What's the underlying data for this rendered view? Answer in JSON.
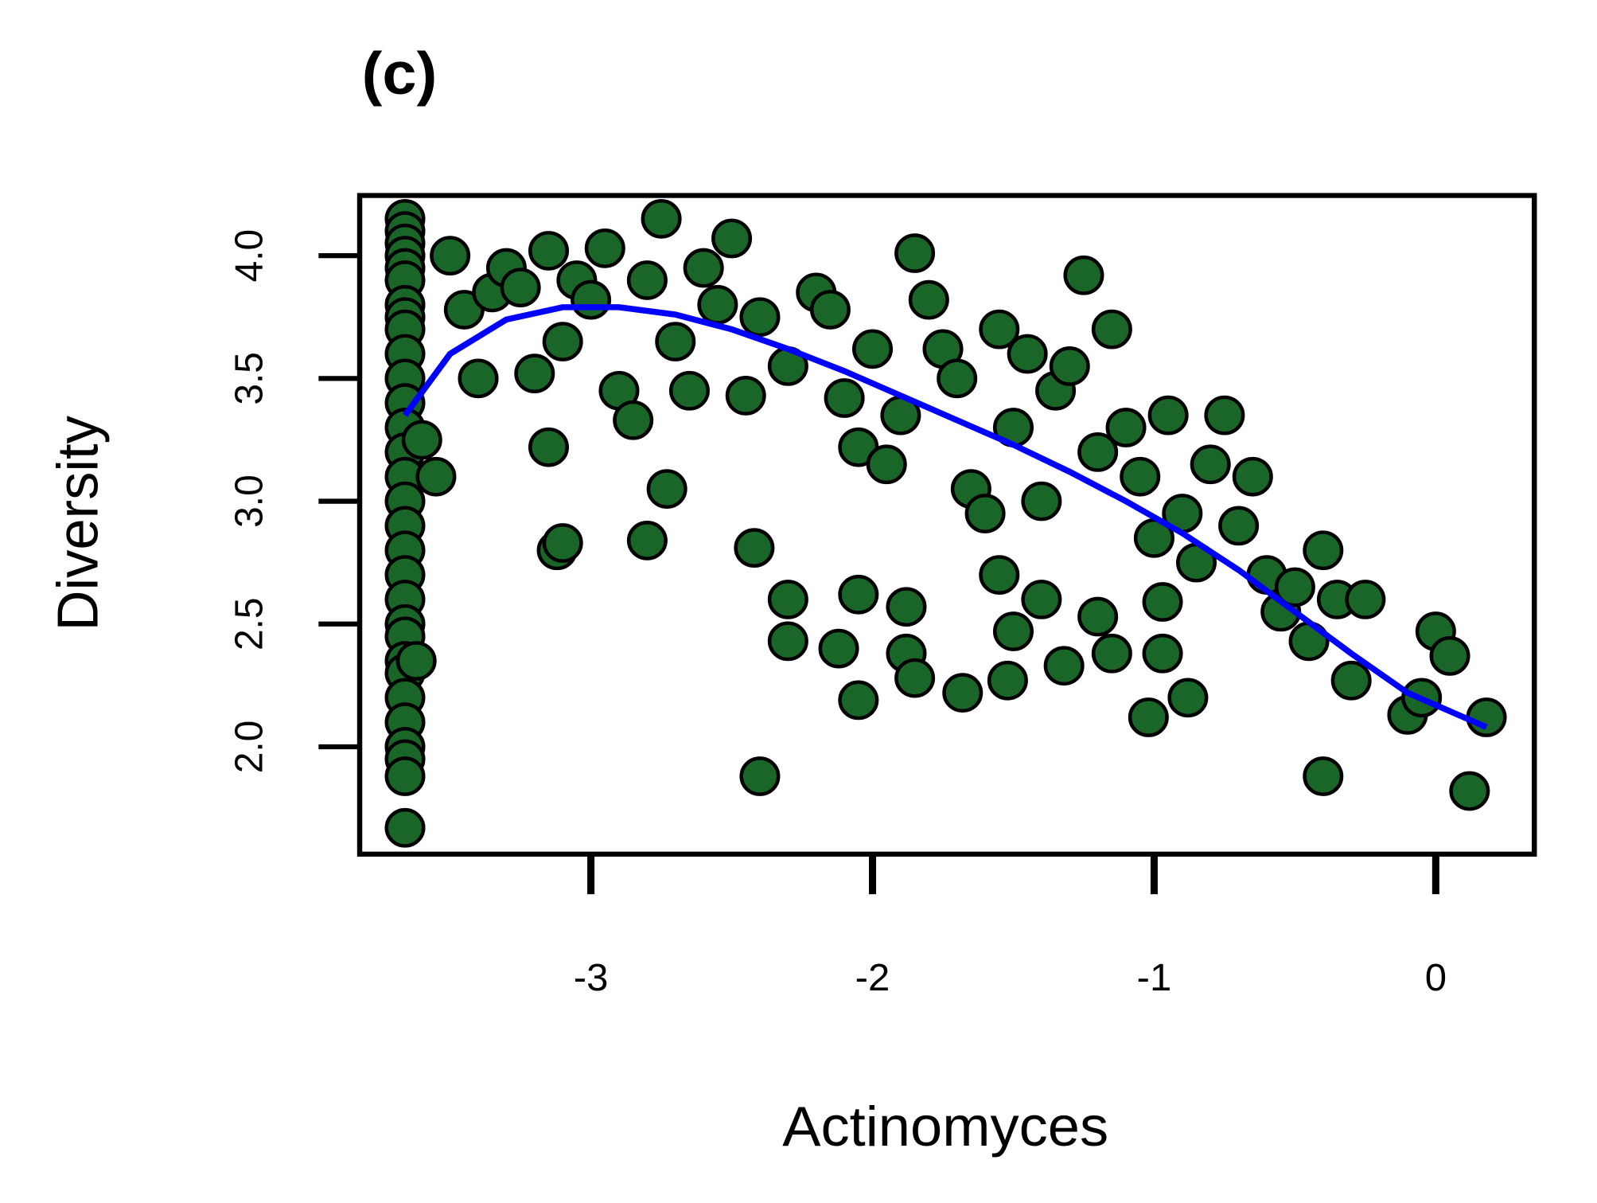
{
  "chart_data": {
    "type": "scatter",
    "title": "(c)",
    "x_label": "Actinomyces",
    "y_label": "Diversity",
    "xlim": [
      -3.821,
      0.35
    ],
    "ylim": [
      1.563,
      4.245
    ],
    "xticks": [
      -3,
      -2,
      -1,
      0
    ],
    "yticks": [
      {
        "value": 2,
        "label": "2.0"
      },
      2.5,
      {
        "value": 3,
        "label": "3.0"
      },
      3.5,
      {
        "value": 4,
        "label": "4.0"
      }
    ],
    "series": [
      {
        "color": "#1a6628",
        "x": [
          -3.66,
          -3.66,
          -3.66,
          -3.66,
          -3.66,
          -3.66,
          -3.66,
          -3.66,
          -3.66,
          -3.66,
          -3.66,
          -3.66,
          -3.66,
          -3.66,
          -3.66,
          -3.66,
          -3.66,
          -3.66,
          -3.66,
          -3.66,
          -3.66,
          -3.66,
          -3.66,
          -3.66,
          -3.66,
          -3.66,
          -3.66,
          -3.66,
          -3.66,
          -3.66,
          -3.5,
          -3.45,
          -3.4,
          -3.35,
          -3.3,
          -3.25,
          -3.2,
          -3.15,
          -3.1,
          -3.05,
          -3.0,
          -2.95,
          -2.9,
          -2.85,
          -2.8,
          -2.75,
          -2.7,
          -2.65,
          -2.6,
          -2.55,
          -2.5,
          -2.45,
          -2.4,
          -2.3,
          -2.2,
          -2.15,
          -2.1,
          -2.05,
          -2.0,
          -1.95,
          -1.9,
          -1.85,
          -1.8,
          -1.75,
          -1.7,
          -1.65,
          -1.6,
          -1.55,
          -1.5,
          -1.45,
          -1.4,
          -1.35,
          -1.3,
          -1.25,
          -1.2,
          -1.15,
          -1.1,
          -1.05,
          -1.0,
          -0.95,
          -0.9,
          -0.85,
          -0.8,
          -0.75,
          -0.7,
          -0.65,
          -0.6,
          -0.55,
          -0.5,
          -0.45,
          -0.4,
          -0.35,
          -0.3,
          -0.25,
          -0.1,
          -0.05,
          0.0,
          0.05,
          0.12,
          0.18,
          -0.4,
          -2.4,
          -3.15,
          -3.12,
          -3.1,
          -2.8,
          -2.73,
          -2.42,
          -2.3,
          -2.3,
          -2.12,
          -2.05,
          -2.05,
          -1.88,
          -1.88,
          -1.85,
          -1.68,
          -1.52,
          -1.5,
          -1.4,
          -1.32,
          -1.2,
          -1.15,
          -0.97,
          -0.97,
          -1.02,
          -0.88,
          -1.55,
          -3.55,
          -3.6,
          -3.62
        ],
        "values": [
          4.15,
          4.1,
          4.05,
          4.0,
          3.95,
          3.9,
          3.8,
          3.75,
          3.7,
          3.6,
          3.5,
          3.4,
          3.3,
          3.2,
          3.1,
          3.0,
          2.9,
          2.8,
          2.7,
          2.6,
          2.5,
          2.45,
          2.35,
          2.3,
          2.2,
          2.1,
          2.0,
          1.95,
          1.88,
          1.67,
          4.0,
          3.78,
          3.5,
          3.85,
          3.95,
          3.87,
          3.52,
          4.02,
          3.65,
          3.9,
          3.82,
          4.03,
          3.45,
          3.33,
          3.9,
          4.15,
          3.65,
          3.45,
          3.95,
          3.8,
          4.07,
          3.43,
          3.75,
          3.55,
          3.85,
          3.78,
          3.42,
          3.22,
          3.62,
          3.15,
          3.35,
          4.01,
          3.82,
          3.62,
          3.5,
          3.05,
          2.95,
          3.7,
          3.3,
          3.6,
          3.0,
          3.45,
          3.55,
          3.92,
          3.2,
          3.7,
          3.3,
          3.1,
          2.85,
          3.35,
          2.95,
          2.75,
          3.15,
          3.35,
          2.9,
          3.1,
          2.7,
          2.55,
          2.65,
          2.43,
          2.8,
          2.6,
          2.27,
          2.6,
          2.13,
          2.2,
          2.47,
          2.37,
          1.82,
          2.12,
          1.88,
          1.88,
          3.22,
          2.8,
          2.83,
          2.84,
          3.05,
          2.81,
          2.6,
          2.43,
          2.4,
          2.62,
          2.19,
          2.57,
          2.38,
          2.28,
          2.22,
          2.27,
          2.47,
          2.6,
          2.33,
          2.53,
          2.38,
          2.59,
          2.38,
          2.12,
          2.2,
          2.7,
          3.1,
          3.25,
          2.35
        ]
      }
    ],
    "fit": {
      "color": "#0000ff",
      "x": [
        -3.66,
        -3.5,
        -3.3,
        -3.1,
        -2.9,
        -2.7,
        -2.5,
        -2.3,
        -2.1,
        -1.9,
        -1.7,
        -1.5,
        -1.3,
        -1.1,
        -0.9,
        -0.7,
        -0.5,
        -0.3,
        -0.1,
        0.18
      ],
      "values": [
        3.35,
        3.6,
        3.74,
        3.79,
        3.79,
        3.76,
        3.7,
        3.62,
        3.53,
        3.43,
        3.33,
        3.23,
        3.12,
        3.0,
        2.87,
        2.72,
        2.55,
        2.38,
        2.22,
        2.08
      ]
    }
  }
}
